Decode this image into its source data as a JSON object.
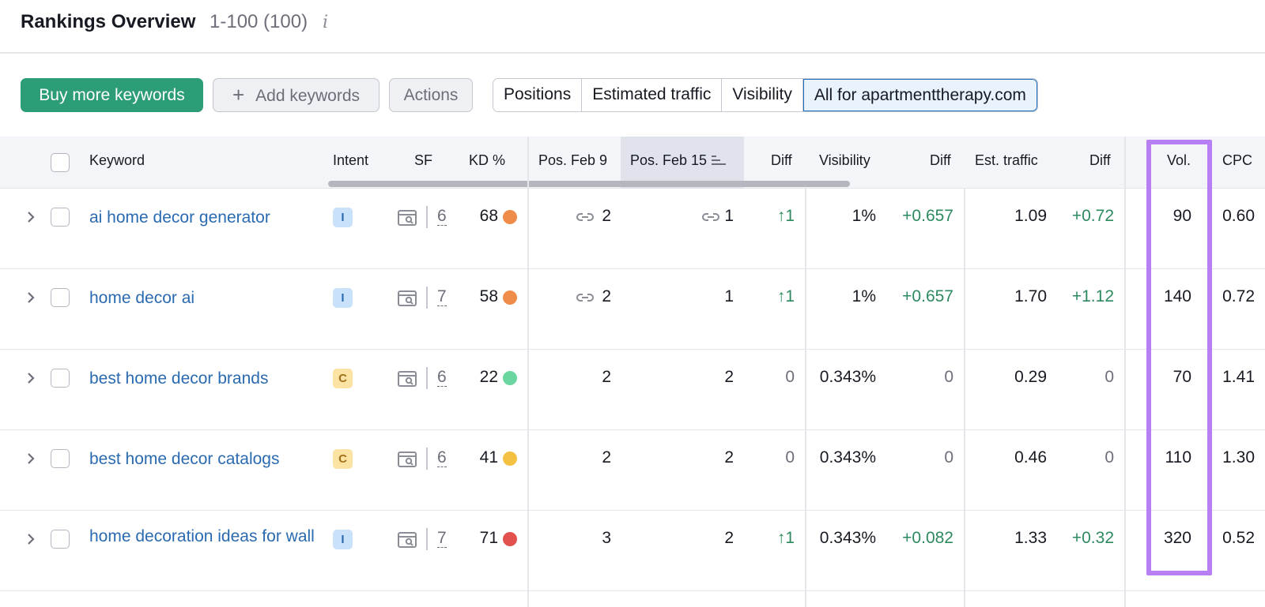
{
  "header": {
    "title": "Rankings Overview",
    "range": "1-100 (100)",
    "info_icon": "info-icon"
  },
  "toolbar": {
    "buy_label": "Buy more keywords",
    "add_label": "Add keywords",
    "actions_label": "Actions",
    "segments": [
      "Positions",
      "Estimated traffic",
      "Visibility",
      "All for apartmenttherapy.com"
    ],
    "active_segment": "All for apartmenttherapy.com"
  },
  "columns": {
    "keyword": "Keyword",
    "intent": "Intent",
    "sf": "SF",
    "kd": "KD %",
    "pos_feb9": "Pos. Feb 9",
    "pos_feb15": "Pos. Feb 15",
    "pos_diff": "Diff",
    "visibility": "Visibility",
    "vis_diff": "Diff",
    "est_traffic": "Est. traffic",
    "traffic_diff": "Diff",
    "vol": "Vol.",
    "cpc": "CPC"
  },
  "rows": [
    {
      "keyword": "ai home decor generator",
      "intent": "I",
      "sf": "6",
      "kd": "68",
      "kd_color": "#f08c4a",
      "pos1": "2",
      "pos1_link": true,
      "pos2": "1",
      "pos2_link": true,
      "pos_diff": "1",
      "pos_diff_dir": "up",
      "visibility": "1%",
      "vis_diff": "+0.657",
      "traffic": "1.09",
      "traffic_diff": "+0.72",
      "vol": "90",
      "cpc": "0.60"
    },
    {
      "keyword": "home decor ai",
      "intent": "I",
      "sf": "7",
      "kd": "58",
      "kd_color": "#f08c4a",
      "pos1": "2",
      "pos1_link": true,
      "pos2": "1",
      "pos2_link": false,
      "pos_diff": "1",
      "pos_diff_dir": "up",
      "visibility": "1%",
      "vis_diff": "+0.657",
      "traffic": "1.70",
      "traffic_diff": "+1.12",
      "vol": "140",
      "cpc": "0.72"
    },
    {
      "keyword": "best home decor brands",
      "intent": "C",
      "sf": "6",
      "kd": "22",
      "kd_color": "#6bd6a0",
      "pos1": "2",
      "pos1_link": false,
      "pos2": "2",
      "pos2_link": false,
      "pos_diff": "0",
      "pos_diff_dir": "none",
      "visibility": "0.343%",
      "vis_diff": "0",
      "traffic": "0.29",
      "traffic_diff": "0",
      "vol": "70",
      "cpc": "1.41"
    },
    {
      "keyword": "best home decor catalogs",
      "intent": "C",
      "sf": "6",
      "kd": "41",
      "kd_color": "#f5c142",
      "pos1": "2",
      "pos1_link": false,
      "pos2": "2",
      "pos2_link": false,
      "pos_diff": "0",
      "pos_diff_dir": "none",
      "visibility": "0.343%",
      "vis_diff": "0",
      "traffic": "0.46",
      "traffic_diff": "0",
      "vol": "110",
      "cpc": "1.30"
    },
    {
      "keyword": "home decoration ideas for wall",
      "intent": "I",
      "sf": "7",
      "kd": "71",
      "kd_color": "#e3514f",
      "pos1": "3",
      "pos1_link": false,
      "pos2": "2",
      "pos2_link": false,
      "pos_diff": "1",
      "pos_diff_dir": "up",
      "visibility": "0.343%",
      "vis_diff": "+0.082",
      "traffic": "1.33",
      "traffic_diff": "+0.32",
      "vol": "320",
      "cpc": "0.52"
    }
  ],
  "colors": {
    "primary_button": "#2d9d78",
    "keyword_link": "#2a6ab0",
    "positive_diff": "#2d8a5f",
    "highlight": "#b77ff3"
  },
  "icons": {
    "expander": "chevron-right-icon",
    "serp": "serp-features-icon",
    "link": "link-icon",
    "sort": "sort-descending-icon",
    "arrow_up": "arrow-up-icon"
  }
}
